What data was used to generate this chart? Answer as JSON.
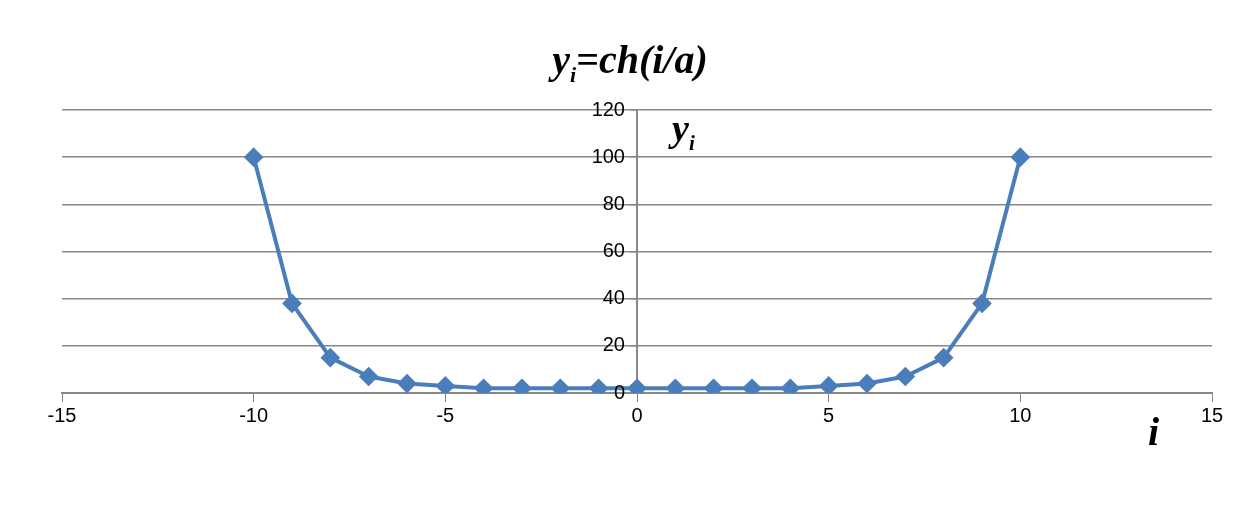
{
  "chart_data": {
    "type": "line",
    "title": "y$_{i}$=ch(i/a)",
    "xlabel": "i",
    "ylabel": "y$_{i}$",
    "x": [
      -10,
      -9,
      -8,
      -7,
      -6,
      -5,
      -4,
      -3,
      -2,
      -1,
      0,
      1,
      2,
      3,
      4,
      5,
      6,
      7,
      8,
      9,
      10
    ],
    "series": [
      {
        "color": "#4a7ebb",
        "values": [
          100,
          38,
          15,
          7,
          4,
          3,
          2,
          2,
          2,
          2,
          2,
          2,
          2,
          2,
          2,
          3,
          4,
          7,
          15,
          38,
          100
        ]
      }
    ],
    "xlim": [
      -15,
      15
    ],
    "xticks": [
      -15,
      -10,
      -5,
      0,
      5,
      10,
      15
    ],
    "ylim": [
      0,
      120
    ],
    "yticks": [
      0,
      20,
      40,
      60,
      80,
      100,
      120
    ],
    "grid": "y",
    "marker": "diamond",
    "line_style": "solid"
  }
}
